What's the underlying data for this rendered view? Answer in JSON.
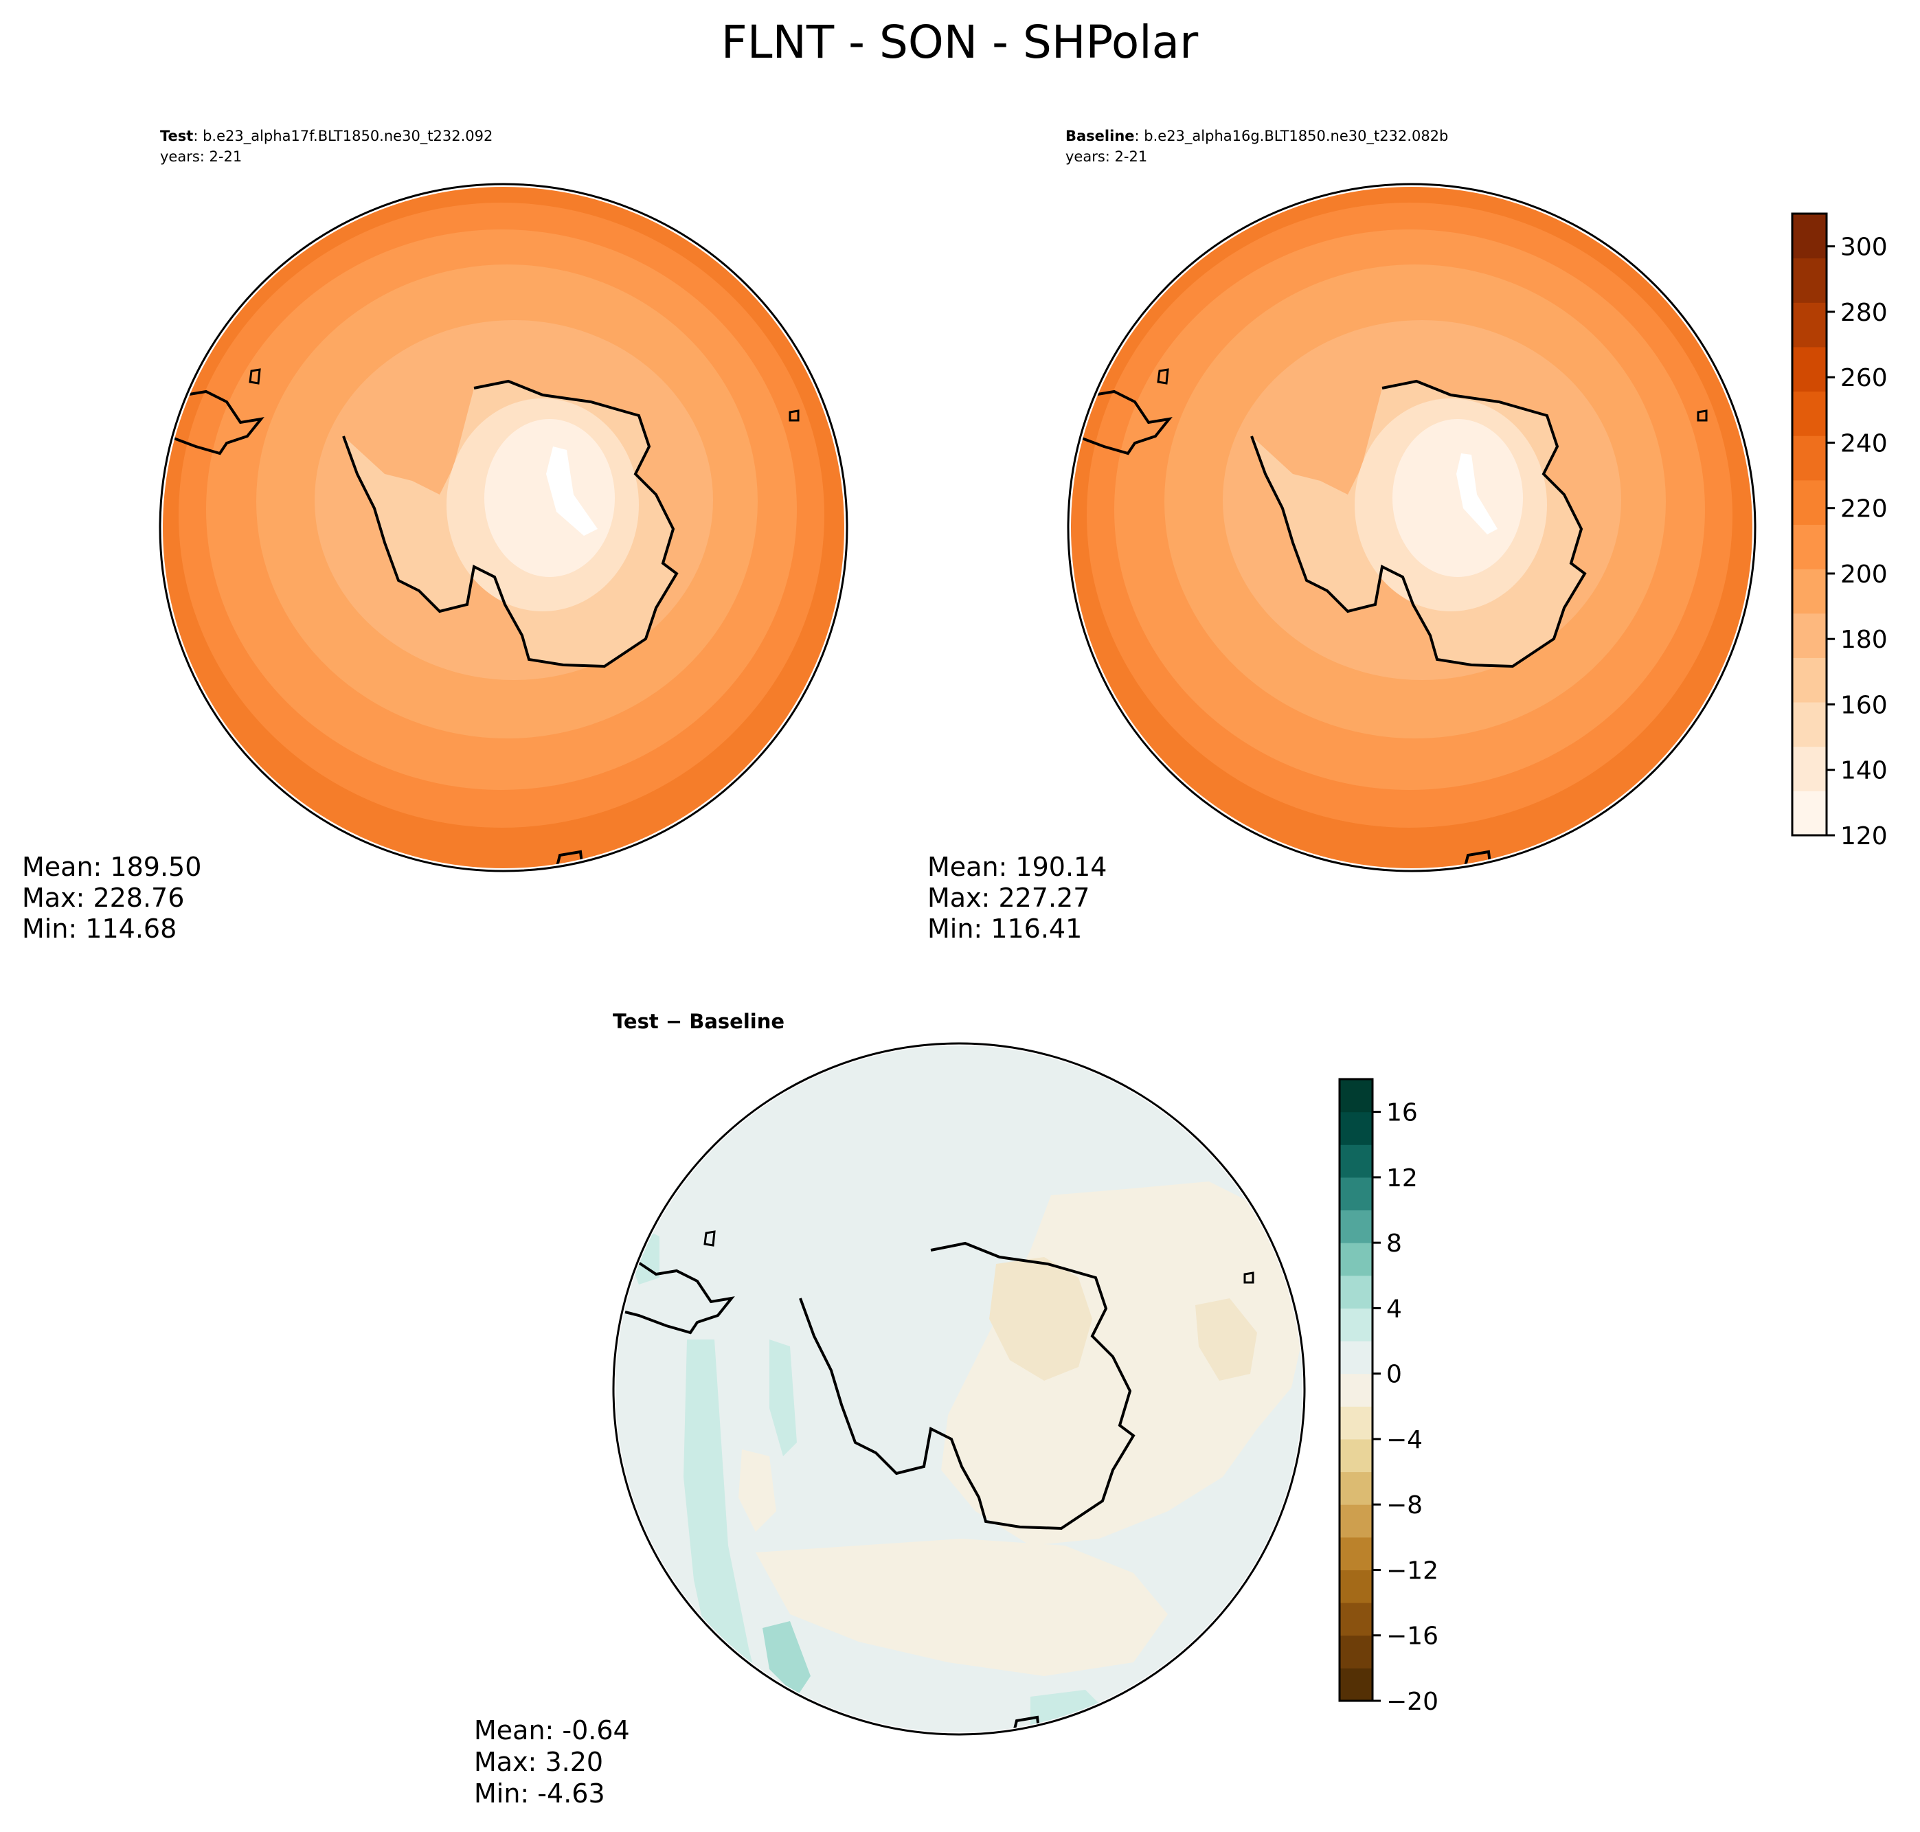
{
  "figure": {
    "title": "FLNT - SON - SHPolar"
  },
  "colors": {
    "orange_levels": [
      "#fff5eb",
      "#fee9d4",
      "#fddbb8",
      "#fdcb9b",
      "#fdb87e",
      "#fda760",
      "#fd9446",
      "#f8822e",
      "#ef6f1c",
      "#e35c0b",
      "#d14a02",
      "#b33e03",
      "#963203",
      "#7f2704"
    ],
    "diff_levels": [
      "#543005",
      "#6e3e09",
      "#8a520f",
      "#a46a18",
      "#bb822b",
      "#ce9f4e",
      "#dcbb72",
      "#e9d499",
      "#f3e6c2",
      "#f5f0e4",
      "#e7f0ef",
      "#cbebe5",
      "#a7dcd2",
      "#7ec6b8",
      "#52a69c",
      "#2b857c",
      "#10675e",
      "#014a41",
      "#003c30"
    ]
  },
  "panels": {
    "test": {
      "label_bold": "Test",
      "label_rest": ": b.e23_alpha17f.BLT1850.ne30_t232.092",
      "years": "years: 2-21",
      "mean": "Mean: 189.50",
      "max": "Max: 228.76",
      "min": "Min: 114.68"
    },
    "baseline": {
      "label_bold": "Baseline",
      "label_rest": ": b.e23_alpha16g.BLT1850.ne30_t232.082b",
      "years": "years: 2-21",
      "mean": "Mean: 190.14",
      "max": "Max: 227.27",
      "min": "Min: 116.41"
    },
    "diff": {
      "title": "Test − Baseline",
      "mean": "Mean: -0.64",
      "max": "Max:  3.20",
      "min": "Min: -4.63"
    }
  },
  "colorbars": {
    "main": {
      "min": 120,
      "max": 310,
      "ticks": [
        "120",
        "140",
        "160",
        "180",
        "200",
        "220",
        "240",
        "260",
        "280",
        "300"
      ],
      "tick_values": [
        120,
        140,
        160,
        180,
        200,
        220,
        240,
        260,
        280,
        300
      ]
    },
    "diff": {
      "min": -20,
      "max": 18,
      "ticks": [
        "−20",
        "−16",
        "−12",
        "−8",
        "−4",
        "0",
        "4",
        "8",
        "12",
        "16"
      ],
      "tick_values": [
        -20,
        -16,
        -12,
        -8,
        -4,
        0,
        4,
        8,
        12,
        16
      ]
    }
  },
  "chart_data": {
    "type": "heatmap",
    "title": "FLNT - SON - SHPolar",
    "maps": [
      {
        "name": "Test",
        "mean": 189.5,
        "max": 228.76,
        "min": 114.68,
        "cbar_range": [
          120,
          310
        ]
      },
      {
        "name": "Baseline",
        "mean": 190.14,
        "max": 227.27,
        "min": 116.41,
        "cbar_range": [
          120,
          310
        ]
      },
      {
        "name": "Test − Baseline",
        "mean": -0.64,
        "max": 3.2,
        "min": -4.63,
        "cbar_range": [
          -20,
          18
        ]
      }
    ],
    "legend": "right colorbar"
  }
}
